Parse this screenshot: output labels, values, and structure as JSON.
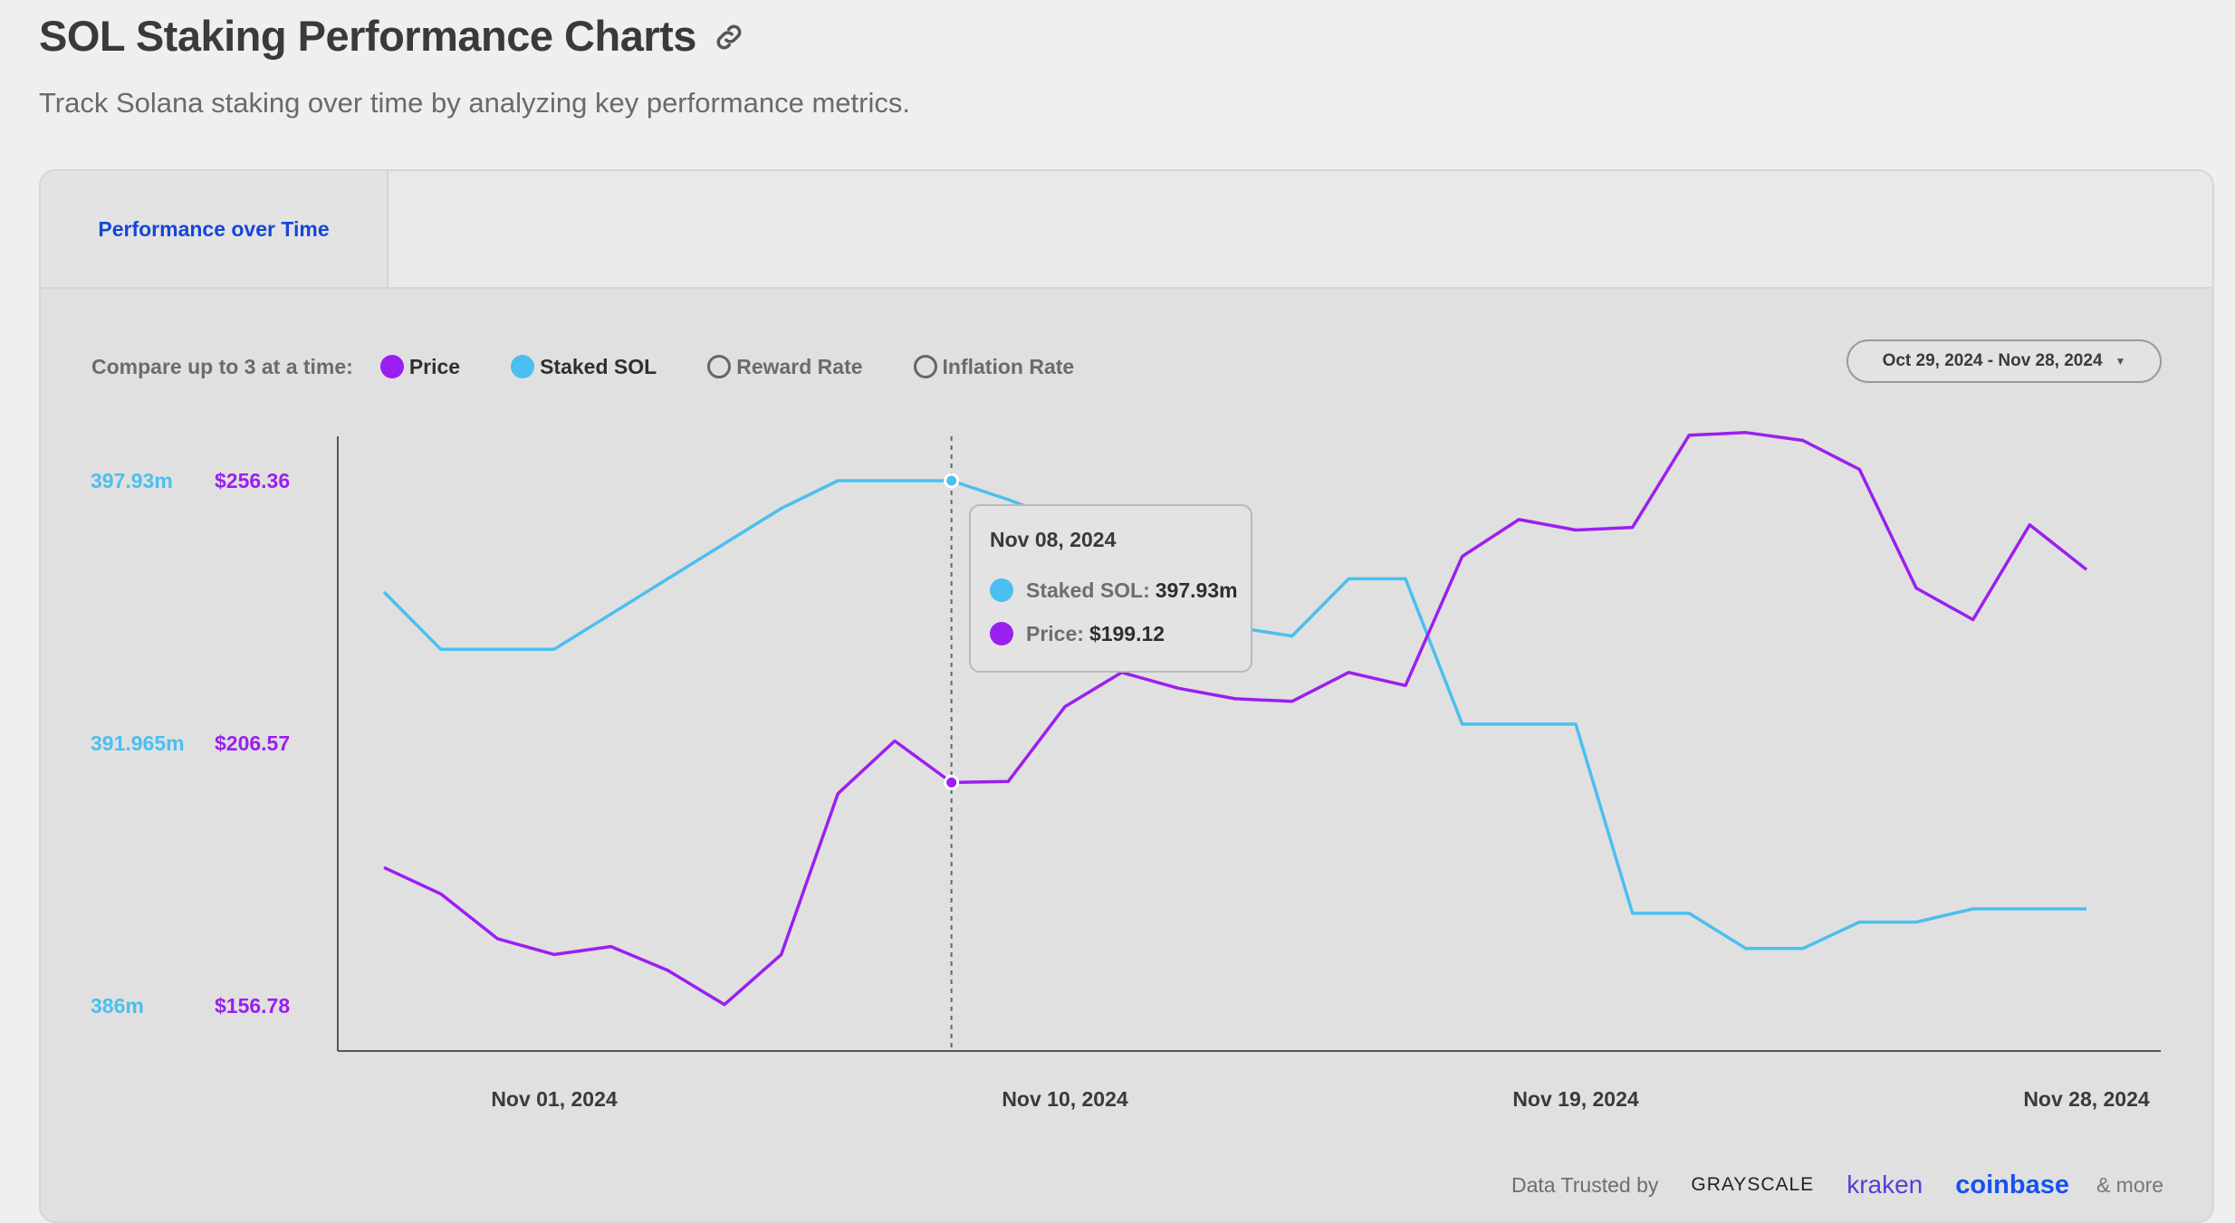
{
  "header": {
    "title": "SOL Staking Performance Charts",
    "subtitle": "Track Solana staking over time by analyzing key performance metrics."
  },
  "tabs": [
    {
      "label": "Performance over Time",
      "active": true
    }
  ],
  "controls": {
    "compare_label": "Compare up to 3 at a time:",
    "metrics": [
      {
        "label": "Price",
        "selected": true,
        "color": "#9b1ff0"
      },
      {
        "label": "Staked SOL",
        "selected": true,
        "color": "#4bbfef"
      },
      {
        "label": "Reward Rate",
        "selected": false
      },
      {
        "label": "Inflation Rate",
        "selected": false
      }
    ],
    "date_range": "Oct 29, 2024 - Nov 28, 2024"
  },
  "tooltip": {
    "date": "Nov 08, 2024",
    "rows": [
      {
        "label": "Staked SOL:",
        "value": "397.93m",
        "color": "#4bbfef"
      },
      {
        "label": "Price:",
        "value": "$199.12",
        "color": "#9b1ff0"
      }
    ]
  },
  "footer": {
    "trusted_label": "Data Trusted by",
    "logos": [
      "GRAYSCALE",
      "kraken",
      "coinbase"
    ],
    "more": "& more"
  },
  "chart_data": {
    "type": "line",
    "x": [
      "Oct 29, 2024",
      "Oct 30, 2024",
      "Oct 31, 2024",
      "Nov 01, 2024",
      "Nov 02, 2024",
      "Nov 03, 2024",
      "Nov 04, 2024",
      "Nov 05, 2024",
      "Nov 06, 2024",
      "Nov 07, 2024",
      "Nov 08, 2024",
      "Nov 09, 2024",
      "Nov 10, 2024",
      "Nov 11, 2024",
      "Nov 12, 2024",
      "Nov 13, 2024",
      "Nov 14, 2024",
      "Nov 15, 2024",
      "Nov 16, 2024",
      "Nov 17, 2024",
      "Nov 18, 2024",
      "Nov 19, 2024",
      "Nov 20, 2024",
      "Nov 21, 2024",
      "Nov 22, 2024",
      "Nov 23, 2024",
      "Nov 24, 2024",
      "Nov 25, 2024",
      "Nov 26, 2024",
      "Nov 27, 2024",
      "Nov 28, 2024"
    ],
    "x_ticks": [
      "Nov 01, 2024",
      "Nov 10, 2024",
      "Nov 19, 2024",
      "Nov 28, 2024"
    ],
    "series": [
      {
        "name": "Staked SOL",
        "unit": "m",
        "color": "#4bbfef",
        "axis": "left",
        "values": [
          395.4,
          394.1,
          394.1,
          394.1,
          394.9,
          395.7,
          396.5,
          397.3,
          397.93,
          397.93,
          397.93,
          397.5,
          397.0,
          396.0,
          395.3,
          394.6,
          394.4,
          395.7,
          395.7,
          392.4,
          392.4,
          392.4,
          388.1,
          388.1,
          387.3,
          387.3,
          387.9,
          387.9,
          388.2,
          388.2,
          388.2
        ],
        "axis_ticks": [
          "397.93m",
          "391.965m",
          "386m"
        ],
        "ylim": [
          386,
          397.93
        ]
      },
      {
        "name": "Price",
        "unit": "$",
        "color": "#9b1ff0",
        "axis": "right",
        "values": [
          183.0,
          178.0,
          169.5,
          166.5,
          168.0,
          163.5,
          157.0,
          166.5,
          197.0,
          207.0,
          199.12,
          199.3,
          213.5,
          220.0,
          217.0,
          215.0,
          214.5,
          220.0,
          217.5,
          242.0,
          249.0,
          247.0,
          247.5,
          265.0,
          265.5,
          264.0,
          258.5,
          236.0,
          230.0,
          248.0,
          239.5
        ],
        "axis_ticks": [
          "$256.36",
          "$206.57",
          "$156.78"
        ],
        "ylim": [
          156.78,
          256.36
        ]
      }
    ],
    "highlight_index": 10,
    "grid": false,
    "legend": "top-left"
  }
}
